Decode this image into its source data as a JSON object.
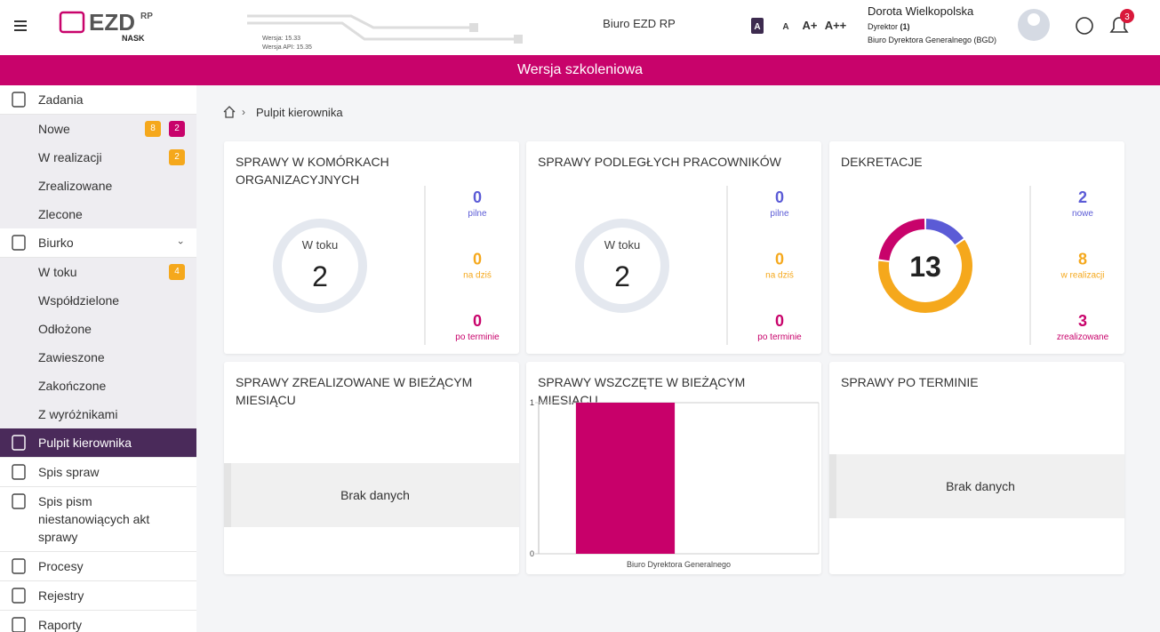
{
  "header": {
    "logo": "EZD",
    "logo_sup": "RP",
    "logo_sub": "NASK",
    "version": "Wersja: 15.33",
    "api_version": "Wersja API: 15.35",
    "office": "Biuro EZD RP",
    "font_sizes": [
      "A",
      "A",
      "A+",
      "A++"
    ],
    "user": {
      "name": "Dorota Wielkopolska",
      "role": "Dyrektor",
      "role_count": "(1)",
      "department": "Biuro Dyrektora Generalnego (BGD)"
    },
    "notifications": 3
  },
  "banner": "Wersja szkoleniowa",
  "sidebar": [
    {
      "label": "Zadania",
      "items": [
        {
          "label": "Nowe",
          "badges": [
            {
              "value": 8,
              "color": "#f5a81c"
            },
            {
              "value": 2,
              "color": "#c8036b"
            }
          ]
        },
        {
          "label": "W realizacji",
          "badges": [
            {
              "value": 2,
              "color": "#f5a81c"
            }
          ]
        },
        {
          "label": "Zrealizowane"
        },
        {
          "label": "Zlecone"
        }
      ]
    },
    {
      "label": "Biurko",
      "items": [
        {
          "label": "W toku",
          "badges": [
            {
              "value": 4,
              "color": "#f5a81c"
            }
          ]
        },
        {
          "label": "Współdzielone"
        },
        {
          "label": "Odłożone"
        },
        {
          "label": "Zawieszone"
        },
        {
          "label": "Zakończone"
        },
        {
          "label": "Z wyróżnikami"
        }
      ]
    },
    {
      "label": "Pulpit kierownika",
      "active": true
    },
    {
      "label": "Spis spraw"
    },
    {
      "label": "Spis pism niestanowiących akt sprawy"
    },
    {
      "label": "Procesy"
    },
    {
      "label": "Rejestry"
    },
    {
      "label": "Raporty"
    }
  ],
  "breadcrumb": "Pulpit kierownika",
  "cards": [
    {
      "title": "SPRAWY W KOMÓRKACH ORGANIZACYJNYCH",
      "donut": {
        "label": "W toku",
        "total": 2
      },
      "stats": [
        {
          "value": 0,
          "label": "pilne",
          "color": "#5b5bd6"
        },
        {
          "value": 0,
          "label": "na dziś",
          "color": "#f5a81c"
        },
        {
          "value": 0,
          "label": "po terminie",
          "color": "#c8036b"
        }
      ]
    },
    {
      "title": "SPRAWY PODLEGŁYCH PRACOWNIKÓW",
      "donut": {
        "label": "W toku",
        "total": 2
      },
      "stats": [
        {
          "value": 0,
          "label": "pilne",
          "color": "#5b5bd6"
        },
        {
          "value": 0,
          "label": "na dziś",
          "color": "#f5a81c"
        },
        {
          "value": 0,
          "label": "po terminie",
          "color": "#c8036b"
        }
      ]
    },
    {
      "title": "DEKRETACJE",
      "donut": {
        "total": 13
      },
      "stats": [
        {
          "value": 2,
          "label": "nowe",
          "color": "#5b5bd6"
        },
        {
          "value": 8,
          "label": "w realizacji",
          "color": "#f5a81c"
        },
        {
          "value": 3,
          "label": "zrealizowane",
          "color": "#c8036b"
        }
      ]
    },
    {
      "title": "SPRAWY ZREALIZOWANE W BIEŻĄCYM MIESIĄCU",
      "empty": "Brak danych"
    },
    {
      "title": "SPRAWY WSZCZĘTE W BIEŻĄCYM MIESIĄCU"
    },
    {
      "title": "SPRAWY PO TERMINIE",
      "empty": "Brak danych"
    }
  ],
  "chart_data": {
    "type": "bar",
    "categories": [
      "Biuro Dyrektora Generalnego"
    ],
    "values": [
      1
    ],
    "color": "#c8006a",
    "ylim": [
      0,
      1
    ],
    "yticks": [
      0,
      1
    ]
  }
}
